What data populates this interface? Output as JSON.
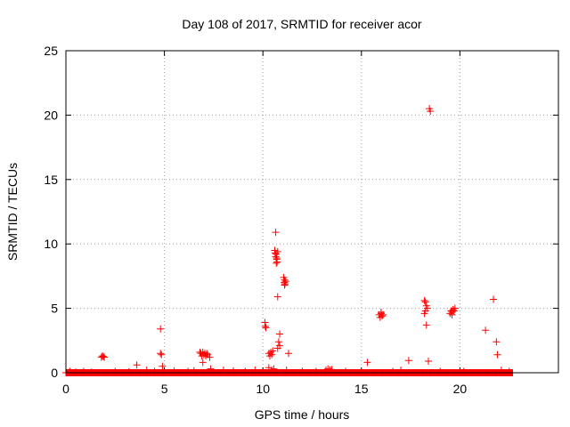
{
  "chart_data": {
    "type": "scatter",
    "title": "Day 108 of 2017, SRMTID for receiver acor",
    "xlabel": "GPS time / hours",
    "ylabel": "SRMTID / TECUs",
    "xlim": [
      0,
      25
    ],
    "ylim": [
      0,
      25
    ],
    "xticks": [
      0,
      5,
      10,
      15,
      20
    ],
    "yticks": [
      0,
      5,
      10,
      15,
      20,
      25
    ],
    "grid": true,
    "marker": "+",
    "color": "#ff0000",
    "baseline": {
      "x_start": 0.0,
      "x_end": 22.7,
      "step": 0.033,
      "y": 0.0
    },
    "points": [
      [
        0.2,
        0.1
      ],
      [
        0.5,
        0.05
      ],
      [
        0.9,
        0.1
      ],
      [
        1.3,
        0.05
      ],
      [
        1.8,
        1.2
      ],
      [
        1.85,
        1.3
      ],
      [
        1.9,
        1.25
      ],
      [
        1.95,
        1.2
      ],
      [
        2.5,
        0.1
      ],
      [
        3.2,
        0.08
      ],
      [
        3.6,
        0.6
      ],
      [
        4.1,
        0.2
      ],
      [
        4.5,
        0.1
      ],
      [
        4.8,
        3.4
      ],
      [
        4.8,
        1.5
      ],
      [
        4.85,
        1.4
      ],
      [
        4.9,
        0.5
      ],
      [
        5.5,
        0.15
      ],
      [
        6.2,
        0.1
      ],
      [
        6.5,
        0.15
      ],
      [
        6.8,
        1.6
      ],
      [
        6.85,
        1.5
      ],
      [
        6.9,
        1.3
      ],
      [
        6.95,
        1.6
      ],
      [
        7.0,
        1.4
      ],
      [
        7.05,
        1.5
      ],
      [
        7.1,
        1.3
      ],
      [
        7.15,
        1.5
      ],
      [
        7.2,
        1.4
      ],
      [
        6.95,
        0.8
      ],
      [
        7.3,
        1.2
      ],
      [
        7.35,
        0.3
      ],
      [
        8.0,
        0.2
      ],
      [
        8.5,
        0.15
      ],
      [
        9.1,
        0.1
      ],
      [
        9.6,
        0.2
      ],
      [
        10.1,
        3.9
      ],
      [
        10.12,
        3.6
      ],
      [
        10.15,
        3.5
      ],
      [
        10.3,
        1.5
      ],
      [
        10.35,
        1.3
      ],
      [
        10.4,
        1.6
      ],
      [
        10.45,
        1.4
      ],
      [
        10.5,
        1.7
      ],
      [
        10.3,
        0.4
      ],
      [
        10.45,
        0.2
      ],
      [
        10.55,
        0.3
      ],
      [
        10.65,
        10.9
      ],
      [
        10.6,
        9.5
      ],
      [
        10.62,
        9.3
      ],
      [
        10.65,
        9.0
      ],
      [
        10.67,
        9.2
      ],
      [
        10.7,
        8.8
      ],
      [
        10.68,
        8.5
      ],
      [
        10.72,
        8.6
      ],
      [
        10.7,
        8.9
      ],
      [
        10.75,
        9.4
      ],
      [
        10.75,
        5.9
      ],
      [
        10.85,
        3.0
      ],
      [
        10.8,
        2.4
      ],
      [
        10.85,
        2.1
      ],
      [
        10.75,
        1.9
      ],
      [
        11.05,
        7.4
      ],
      [
        11.1,
        7.2
      ],
      [
        11.08,
        7.0
      ],
      [
        11.12,
        6.9
      ],
      [
        11.15,
        7.1
      ],
      [
        11.1,
        6.8
      ],
      [
        11.3,
        1.5
      ],
      [
        11.2,
        0.2
      ],
      [
        12.0,
        0.1
      ],
      [
        12.7,
        0.1
      ],
      [
        13.2,
        0.2
      ],
      [
        13.3,
        0.3
      ],
      [
        13.4,
        0.2
      ],
      [
        13.5,
        0.25
      ],
      [
        14.2,
        0.1
      ],
      [
        15.3,
        0.8
      ],
      [
        15.9,
        4.5
      ],
      [
        15.95,
        4.3
      ],
      [
        16.0,
        4.6
      ],
      [
        16.05,
        4.4
      ],
      [
        16.1,
        4.5
      ],
      [
        16.0,
        4.7
      ],
      [
        16.6,
        0.1
      ],
      [
        17.0,
        0.2
      ],
      [
        17.4,
        0.95
      ],
      [
        18.2,
        5.6
      ],
      [
        18.25,
        5.5
      ],
      [
        18.3,
        5.2
      ],
      [
        18.35,
        5.0
      ],
      [
        18.2,
        4.6
      ],
      [
        18.25,
        4.8
      ],
      [
        18.3,
        3.7
      ],
      [
        18.45,
        20.5
      ],
      [
        18.5,
        20.3
      ],
      [
        18.4,
        0.9
      ],
      [
        19.0,
        0.1
      ],
      [
        19.5,
        4.6
      ],
      [
        19.55,
        4.8
      ],
      [
        19.6,
        4.7
      ],
      [
        19.65,
        4.9
      ],
      [
        19.7,
        4.8
      ],
      [
        19.75,
        5.0
      ],
      [
        19.6,
        4.5
      ],
      [
        20.2,
        0.1
      ],
      [
        21.3,
        3.3
      ],
      [
        21.7,
        5.7
      ],
      [
        21.85,
        2.4
      ],
      [
        21.9,
        1.4
      ],
      [
        22.1,
        0.2
      ],
      [
        22.5,
        0.1
      ]
    ]
  }
}
